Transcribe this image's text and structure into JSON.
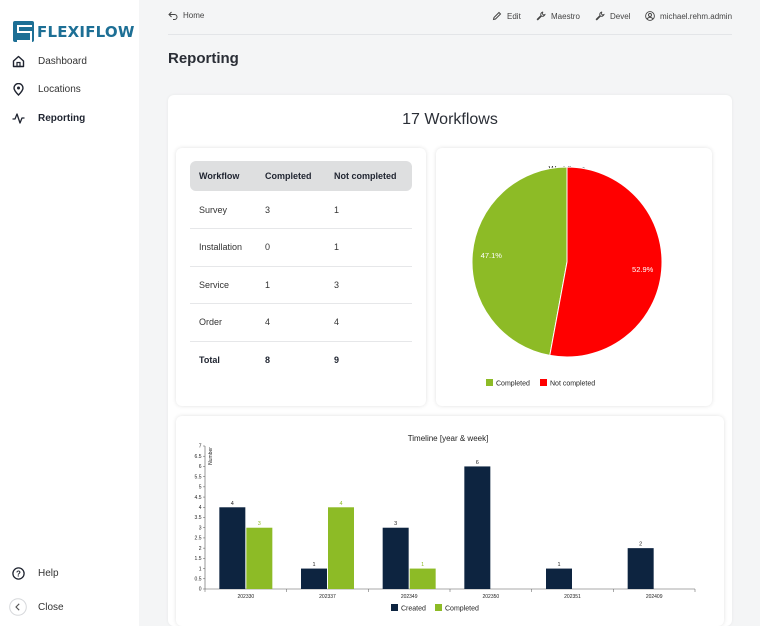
{
  "brand": {
    "name": "FLEXIFLOW",
    "color": "#1d6f95"
  },
  "sidebar": {
    "items": [
      {
        "label": "Dashboard",
        "icon": "home-icon"
      },
      {
        "label": "Locations",
        "icon": "location-pin-icon"
      },
      {
        "label": "Reporting",
        "icon": "activity-icon",
        "active": true
      }
    ],
    "help_label": "Help",
    "close_label": "Close"
  },
  "topbar": {
    "home_label": "Home",
    "edit_label": "Edit",
    "maestro_label": "Maestro",
    "devel_label": "Devel",
    "user_label": "michael.rehm.admin"
  },
  "page": {
    "title": "Reporting",
    "headline": "17 Workflows"
  },
  "table": {
    "headers": [
      "Workflow",
      "Completed",
      "Not completed"
    ],
    "rows": [
      [
        "Survey",
        "3",
        "1"
      ],
      [
        "Installation",
        "0",
        "1"
      ],
      [
        "Service",
        "1",
        "3"
      ],
      [
        "Order",
        "4",
        "4"
      ]
    ],
    "total": [
      "Total",
      "8",
      "9"
    ]
  },
  "colors": {
    "completed": "#8dbb26",
    "not_completed": "#ff0000",
    "created": "#0d2440"
  },
  "chart_data": [
    {
      "type": "pie",
      "title": "Workflows",
      "slices": [
        {
          "label": "Completed",
          "value": 47.1,
          "display": "47.1%"
        },
        {
          "label": "Not completed",
          "value": 52.9,
          "display": "52.9%"
        }
      ],
      "legend": "bottom"
    },
    {
      "type": "bar",
      "title": "Timeline [year & week]",
      "ylabel": "Number",
      "ylim": [
        0,
        7
      ],
      "yticks": [
        "0",
        "0.5",
        "1",
        "1.5",
        "2",
        "2.5",
        "3",
        "3.5",
        "4",
        "4.5",
        "5",
        "5.5",
        "6",
        "6.5",
        "7"
      ],
      "categories": [
        "202330",
        "202337",
        "202349",
        "202350",
        "202351",
        "202409"
      ],
      "series": [
        {
          "name": "Created",
          "values": [
            4,
            1,
            3,
            6,
            1,
            2
          ]
        },
        {
          "name": "Completed",
          "values": [
            3,
            4,
            1,
            null,
            null,
            null
          ]
        }
      ],
      "legend": "bottom"
    }
  ]
}
